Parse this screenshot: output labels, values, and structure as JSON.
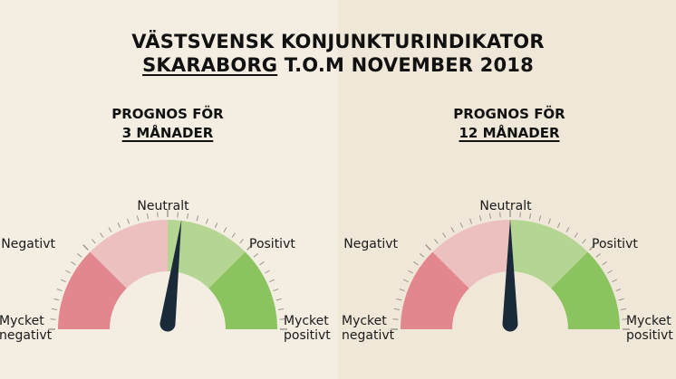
{
  "header": {
    "line1": "VÄSTSVENSK KONJUNKTURINDIKATOR",
    "line2_underlined": "SKARABORG",
    "line2_rest": " T.O.M NOVEMBER 2018"
  },
  "colors": {
    "mycket_negativt": "#e3878f",
    "negativt": "#ecc0bf",
    "neutralt_positivt": "#b5d592",
    "mycket_positivt": "#8bc45f",
    "needle": "#1b2a38",
    "tick": "#9a948c"
  },
  "chart_data": [
    {
      "type": "gauge",
      "subtitle_line1": "PROGNOS FÖR",
      "subtitle_line2": "3 MÅNADER",
      "labels": {
        "mycket_negativt_1": "Mycket",
        "mycket_negativt_2": "negativt",
        "negativt": "Negativt",
        "neutralt": "Neutralt",
        "positivt": "Positivt",
        "mycket_positivt_1": "Mycket",
        "mycket_positivt_2": "positivt"
      },
      "range": [
        -100,
        100
      ],
      "segments": [
        {
          "name": "Mycket negativt",
          "from": -100,
          "to": -50,
          "color": "#e3878f"
        },
        {
          "name": "Negativt",
          "from": -50,
          "to": 0,
          "color": "#ecc0bf"
        },
        {
          "name": "Positivt",
          "from": 0,
          "to": 50,
          "color": "#b5d592"
        },
        {
          "name": "Mycket positivt",
          "from": 50,
          "to": 100,
          "color": "#8bc45f"
        }
      ],
      "value": 8
    },
    {
      "type": "gauge",
      "subtitle_line1": "PROGNOS FÖR",
      "subtitle_line2": "12 MÅNADER",
      "labels": {
        "mycket_negativt_1": "Mycket",
        "mycket_negativt_2": "negativt",
        "negativt": "Negativt",
        "neutralt": "Neutralt",
        "positivt": "Positivt",
        "mycket_positivt_1": "Mycket",
        "mycket_positivt_2": "positivt"
      },
      "range": [
        -100,
        100
      ],
      "segments": [
        {
          "name": "Mycket negativt",
          "from": -100,
          "to": -50,
          "color": "#e3878f"
        },
        {
          "name": "Negativt",
          "from": -50,
          "to": 0,
          "color": "#ecc0bf"
        },
        {
          "name": "Positivt",
          "from": 0,
          "to": 50,
          "color": "#b5d592"
        },
        {
          "name": "Mycket positivt",
          "from": 50,
          "to": 100,
          "color": "#8bc45f"
        }
      ],
      "value": 0
    }
  ]
}
